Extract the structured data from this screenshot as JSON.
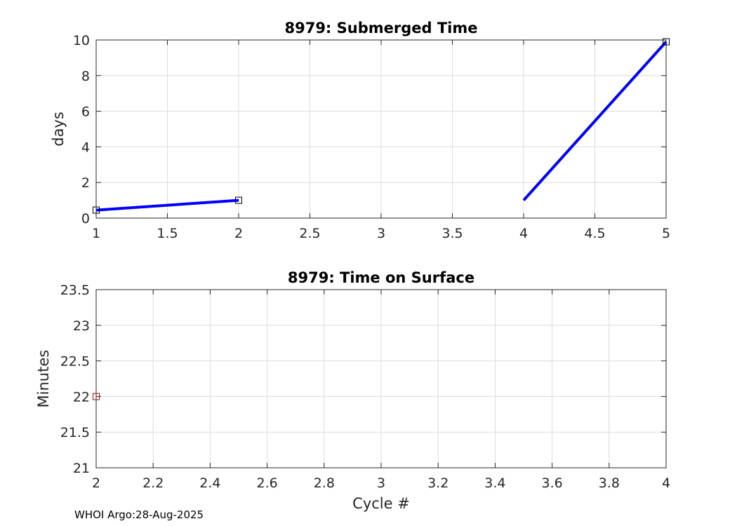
{
  "chart_data": [
    {
      "type": "line",
      "title": "8979: Submerged Time",
      "xlabel": "",
      "ylabel": "days",
      "xlim": [
        1,
        5
      ],
      "ylim": [
        0,
        10
      ],
      "xticks": [
        1,
        1.5,
        2,
        2.5,
        3,
        3.5,
        4,
        4.5,
        5
      ],
      "yticks": [
        0,
        2,
        4,
        6,
        8,
        10
      ],
      "xtick_labels": [
        "1",
        "1.5",
        "2",
        "2.5",
        "3",
        "3.5",
        "4",
        "4.5",
        "5"
      ],
      "ytick_labels": [
        "0",
        "2",
        "4",
        "6",
        "8",
        "10"
      ],
      "grid": true,
      "series": [
        {
          "name": "line",
          "color": "#0000ff",
          "segments": [
            [
              [
                1,
                0.45
              ],
              [
                2,
                1.0
              ]
            ],
            [
              [
                4,
                1.0
              ],
              [
                5,
                9.9
              ]
            ]
          ]
        },
        {
          "name": "markers",
          "color": "#000000",
          "marker": "square",
          "points": [
            [
              1,
              0.45
            ],
            [
              2,
              1.0
            ],
            [
              5,
              9.9
            ]
          ]
        }
      ]
    },
    {
      "type": "scatter",
      "title": "8979: Time on Surface",
      "xlabel": "Cycle #",
      "ylabel": "Minutes",
      "xlim": [
        2,
        4
      ],
      "ylim": [
        21,
        23.5
      ],
      "xticks": [
        2,
        2.2,
        2.4,
        2.6,
        2.8,
        3,
        3.2,
        3.4,
        3.6,
        3.8,
        4
      ],
      "yticks": [
        21,
        21.5,
        22,
        22.5,
        23,
        23.5
      ],
      "xtick_labels": [
        "2",
        "2.2",
        "2.4",
        "2.6",
        "2.8",
        "3",
        "3.2",
        "3.4",
        "3.6",
        "3.8",
        "4"
      ],
      "ytick_labels": [
        "21",
        "21.5",
        "22",
        "22.5",
        "23",
        "23.5"
      ],
      "grid": true,
      "series": [
        {
          "name": "surface time",
          "color": "#c00000",
          "marker": "square",
          "points": [
            [
              2,
              22
            ]
          ]
        }
      ]
    }
  ],
  "footer": "WHOI Argo:28-Aug-2025"
}
